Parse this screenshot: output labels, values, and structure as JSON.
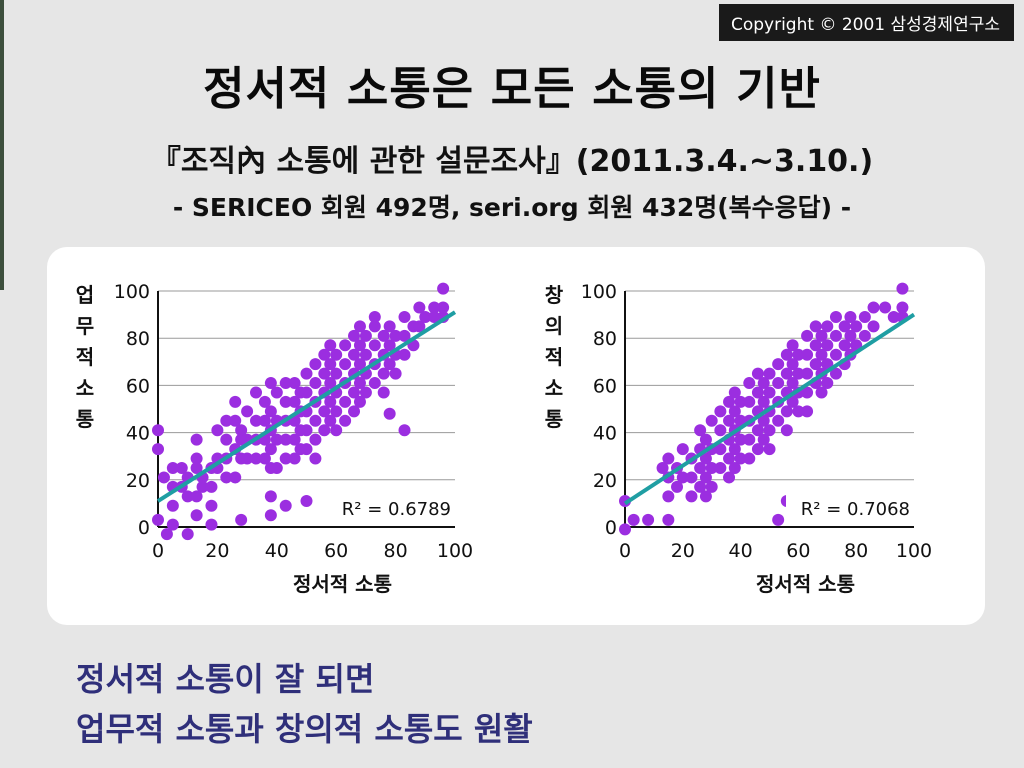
{
  "copyright": "Copyright © 2001 삼성경제연구소",
  "title": "정서적 소통은 모든 소통의 기반",
  "survey": "『조직內 소통에 관한 설문조사』(2011.3.4.~3.10.)",
  "respondents": "- SERICEO 회원 492명, seri.org 회원 432명(복수응답) -",
  "conclusion": {
    "line1": "정서적 소통이 잘 되면",
    "line2": "업무적 소통과 창의적 소통도 원활"
  },
  "colors": {
    "point": "#9b2ee0",
    "trend": "#1f9ea3",
    "grid": "#9a9a9a",
    "conclusion": "#2f2f7a"
  },
  "chart_data": [
    {
      "type": "scatter",
      "xlabel": "정서적 소통",
      "ylabel": "업무적 소통",
      "xlim": [
        0,
        100
      ],
      "ylim": [
        0,
        100
      ],
      "xticks": [
        0,
        20,
        40,
        60,
        80,
        100
      ],
      "yticks": [
        0,
        20,
        40,
        60,
        80,
        100
      ],
      "grid": "horizontal",
      "annotation": "R² = 0.6789",
      "trendline": [
        [
          0,
          11
        ],
        [
          100,
          91
        ]
      ],
      "points": [
        [
          0,
          41
        ],
        [
          0,
          33
        ],
        [
          0,
          3
        ],
        [
          3,
          -3
        ],
        [
          2,
          21
        ],
        [
          5,
          25
        ],
        [
          5,
          17
        ],
        [
          5,
          9
        ],
        [
          5,
          1
        ],
        [
          8,
          25
        ],
        [
          8,
          17
        ],
        [
          10,
          21
        ],
        [
          10,
          13
        ],
        [
          10,
          -3
        ],
        [
          13,
          29
        ],
        [
          13,
          37
        ],
        [
          13,
          25
        ],
        [
          13,
          13
        ],
        [
          13,
          5
        ],
        [
          15,
          21
        ],
        [
          15,
          17
        ],
        [
          18,
          25
        ],
        [
          18,
          17
        ],
        [
          18,
          9
        ],
        [
          18,
          1
        ],
        [
          20,
          41
        ],
        [
          20,
          29
        ],
        [
          20,
          25
        ],
        [
          23,
          37
        ],
        [
          23,
          29
        ],
        [
          23,
          21
        ],
        [
          23,
          45
        ],
        [
          26,
          33
        ],
        [
          26,
          45
        ],
        [
          26,
          53
        ],
        [
          26,
          21
        ],
        [
          28,
          41
        ],
        [
          28,
          37
        ],
        [
          28,
          29
        ],
        [
          28,
          3
        ],
        [
          30,
          49
        ],
        [
          30,
          37
        ],
        [
          30,
          29
        ],
        [
          33,
          57
        ],
        [
          33,
          45
        ],
        [
          33,
          37
        ],
        [
          33,
          29
        ],
        [
          36,
          53
        ],
        [
          36,
          45
        ],
        [
          36,
          37
        ],
        [
          36,
          29
        ],
        [
          38,
          61
        ],
        [
          38,
          49
        ],
        [
          38,
          41
        ],
        [
          38,
          33
        ],
        [
          38,
          25
        ],
        [
          38,
          13
        ],
        [
          38,
          5
        ],
        [
          40,
          57
        ],
        [
          40,
          45
        ],
        [
          40,
          37
        ],
        [
          40,
          25
        ],
        [
          43,
          61
        ],
        [
          43,
          53
        ],
        [
          43,
          45
        ],
        [
          43,
          37
        ],
        [
          43,
          29
        ],
        [
          43,
          9
        ],
        [
          46,
          61
        ],
        [
          46,
          53
        ],
        [
          46,
          45
        ],
        [
          46,
          37
        ],
        [
          46,
          29
        ],
        [
          48,
          57
        ],
        [
          48,
          49
        ],
        [
          48,
          41
        ],
        [
          48,
          33
        ],
        [
          50,
          65
        ],
        [
          50,
          57
        ],
        [
          50,
          49
        ],
        [
          50,
          41
        ],
        [
          50,
          33
        ],
        [
          50,
          11
        ],
        [
          53,
          69
        ],
        [
          53,
          61
        ],
        [
          53,
          53
        ],
        [
          53,
          45
        ],
        [
          53,
          37
        ],
        [
          53,
          29
        ],
        [
          56,
          73
        ],
        [
          56,
          65
        ],
        [
          56,
          57
        ],
        [
          56,
          49
        ],
        [
          56,
          41
        ],
        [
          58,
          77
        ],
        [
          58,
          69
        ],
        [
          58,
          61
        ],
        [
          58,
          53
        ],
        [
          58,
          45
        ],
        [
          60,
          73
        ],
        [
          60,
          65
        ],
        [
          60,
          57
        ],
        [
          60,
          49
        ],
        [
          60,
          41
        ],
        [
          63,
          77
        ],
        [
          63,
          69
        ],
        [
          63,
          61
        ],
        [
          63,
          53
        ],
        [
          63,
          45
        ],
        [
          66,
          81
        ],
        [
          66,
          73
        ],
        [
          66,
          65
        ],
        [
          66,
          57
        ],
        [
          66,
          49
        ],
        [
          68,
          85
        ],
        [
          68,
          77
        ],
        [
          68,
          69
        ],
        [
          68,
          61
        ],
        [
          68,
          53
        ],
        [
          70,
          81
        ],
        [
          70,
          73
        ],
        [
          70,
          65
        ],
        [
          70,
          57
        ],
        [
          73,
          89
        ],
        [
          73,
          85
        ],
        [
          73,
          77
        ],
        [
          73,
          69
        ],
        [
          73,
          61
        ],
        [
          76,
          81
        ],
        [
          76,
          73
        ],
        [
          76,
          65
        ],
        [
          76,
          57
        ],
        [
          78,
          85
        ],
        [
          78,
          77
        ],
        [
          78,
          69
        ],
        [
          78,
          48
        ],
        [
          80,
          81
        ],
        [
          80,
          73
        ],
        [
          80,
          65
        ],
        [
          83,
          89
        ],
        [
          83,
          81
        ],
        [
          83,
          73
        ],
        [
          83,
          41
        ],
        [
          86,
          85
        ],
        [
          86,
          77
        ],
        [
          88,
          93
        ],
        [
          88,
          85
        ],
        [
          90,
          89
        ],
        [
          93,
          93
        ],
        [
          93,
          89
        ],
        [
          96,
          101
        ],
        [
          96,
          93
        ],
        [
          96,
          89
        ]
      ]
    },
    {
      "type": "scatter",
      "xlabel": "정서적 소통",
      "ylabel": "창의적 소통",
      "xlim": [
        0,
        100
      ],
      "ylim": [
        0,
        100
      ],
      "xticks": [
        0,
        20,
        40,
        60,
        80,
        100
      ],
      "yticks": [
        0,
        20,
        40,
        60,
        80,
        100
      ],
      "grid": "horizontal",
      "annotation": "R² = 0.7068",
      "trendline": [
        [
          0,
          10
        ],
        [
          100,
          90
        ]
      ],
      "points": [
        [
          0,
          11
        ],
        [
          0,
          -1
        ],
        [
          3,
          3
        ],
        [
          8,
          3
        ],
        [
          13,
          25
        ],
        [
          15,
          29
        ],
        [
          15,
          21
        ],
        [
          15,
          13
        ],
        [
          15,
          3
        ],
        [
          18,
          25
        ],
        [
          18,
          17
        ],
        [
          20,
          33
        ],
        [
          20,
          21
        ],
        [
          23,
          29
        ],
        [
          23,
          21
        ],
        [
          23,
          13
        ],
        [
          26,
          41
        ],
        [
          26,
          33
        ],
        [
          26,
          25
        ],
        [
          26,
          17
        ],
        [
          28,
          37
        ],
        [
          28,
          29
        ],
        [
          28,
          21
        ],
        [
          28,
          13
        ],
        [
          30,
          45
        ],
        [
          30,
          33
        ],
        [
          30,
          25
        ],
        [
          30,
          17
        ],
        [
          33,
          49
        ],
        [
          33,
          41
        ],
        [
          33,
          33
        ],
        [
          33,
          25
        ],
        [
          36,
          53
        ],
        [
          36,
          45
        ],
        [
          36,
          37
        ],
        [
          36,
          29
        ],
        [
          36,
          21
        ],
        [
          38,
          57
        ],
        [
          38,
          49
        ],
        [
          38,
          41
        ],
        [
          38,
          33
        ],
        [
          38,
          25
        ],
        [
          40,
          53
        ],
        [
          40,
          45
        ],
        [
          40,
          37
        ],
        [
          40,
          29
        ],
        [
          43,
          61
        ],
        [
          43,
          53
        ],
        [
          43,
          45
        ],
        [
          43,
          37
        ],
        [
          43,
          29
        ],
        [
          46,
          65
        ],
        [
          46,
          57
        ],
        [
          46,
          49
        ],
        [
          46,
          41
        ],
        [
          46,
          33
        ],
        [
          48,
          61
        ],
        [
          48,
          53
        ],
        [
          48,
          45
        ],
        [
          48,
          37
        ],
        [
          50,
          65
        ],
        [
          50,
          57
        ],
        [
          50,
          49
        ],
        [
          50,
          41
        ],
        [
          50,
          33
        ],
        [
          53,
          69
        ],
        [
          53,
          61
        ],
        [
          53,
          53
        ],
        [
          53,
          45
        ],
        [
          53,
          3
        ],
        [
          56,
          73
        ],
        [
          56,
          65
        ],
        [
          56,
          57
        ],
        [
          56,
          49
        ],
        [
          56,
          41
        ],
        [
          56,
          11
        ],
        [
          58,
          77
        ],
        [
          58,
          69
        ],
        [
          58,
          61
        ],
        [
          58,
          53
        ],
        [
          60,
          73
        ],
        [
          60,
          65
        ],
        [
          60,
          57
        ],
        [
          60,
          49
        ],
        [
          63,
          81
        ],
        [
          63,
          73
        ],
        [
          63,
          65
        ],
        [
          63,
          57
        ],
        [
          63,
          49
        ],
        [
          66,
          85
        ],
        [
          66,
          77
        ],
        [
          66,
          69
        ],
        [
          66,
          61
        ],
        [
          68,
          81
        ],
        [
          68,
          73
        ],
        [
          68,
          65
        ],
        [
          68,
          57
        ],
        [
          70,
          85
        ],
        [
          70,
          77
        ],
        [
          70,
          69
        ],
        [
          70,
          61
        ],
        [
          73,
          89
        ],
        [
          73,
          81
        ],
        [
          73,
          73
        ],
        [
          73,
          65
        ],
        [
          76,
          85
        ],
        [
          76,
          77
        ],
        [
          76,
          69
        ],
        [
          78,
          89
        ],
        [
          78,
          81
        ],
        [
          78,
          73
        ],
        [
          80,
          85
        ],
        [
          80,
          77
        ],
        [
          83,
          89
        ],
        [
          83,
          81
        ],
        [
          86,
          93
        ],
        [
          86,
          85
        ],
        [
          90,
          93
        ],
        [
          93,
          89
        ],
        [
          96,
          101
        ],
        [
          96,
          93
        ],
        [
          96,
          89
        ]
      ]
    }
  ]
}
